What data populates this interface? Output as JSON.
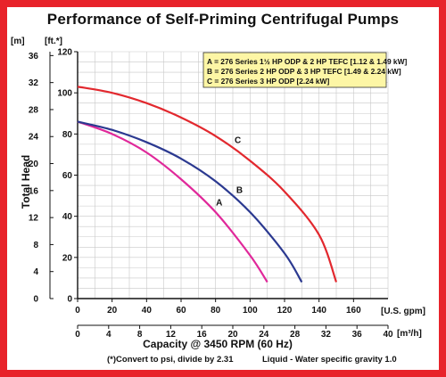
{
  "chart_data": {
    "type": "line",
    "title": "Performance of Self-Priming Centrifugal Pumps",
    "ylabel": "Total Head",
    "xlabel": "Capacity @ 3450 RPM (60 Hz)",
    "y_unit_left": "[m]",
    "y_unit_right": "[ft.*]",
    "x_unit_top": "[U.S. gpm]",
    "x_unit_bottom": "[m³/h]",
    "ylim_ft": [
      0,
      120
    ],
    "xlim_gpm": [
      0,
      180
    ],
    "y_ticks_ft": [
      0,
      20,
      40,
      60,
      80,
      100,
      120
    ],
    "y_ticks_m": [
      0,
      4,
      8,
      12,
      16,
      20,
      24,
      28,
      32,
      36
    ],
    "x_ticks_gpm": [
      0,
      20,
      40,
      60,
      80,
      100,
      120,
      140,
      160
    ],
    "x_ticks_m3h": [
      0,
      4,
      8,
      12,
      16,
      20,
      24,
      28,
      32,
      36,
      40
    ],
    "grid": true,
    "legend_placement": "top-right",
    "legend": [
      "A = 276 Series 1½ HP ODP & 2 HP TEFC [1.12 & 1.49 kW]",
      "B = 276 Series 2 HP ODP & 3 HP TEFC [1.49 & 2.24 kW]",
      "C = 276 Series 3 HP ODP [2.24 kW]"
    ],
    "series": [
      {
        "name": "A",
        "color": "#e0289a",
        "x": [
          0,
          20,
          40,
          60,
          80,
          100,
          110
        ],
        "y": [
          86,
          80,
          71,
          58,
          42,
          21,
          8
        ]
      },
      {
        "name": "B",
        "color": "#2b3990",
        "x": [
          0,
          20,
          40,
          60,
          80,
          100,
          120,
          130
        ],
        "y": [
          86,
          82,
          76,
          68,
          57,
          42,
          22,
          8
        ]
      },
      {
        "name": "C",
        "color": "#e2282e",
        "x": [
          0,
          20,
          40,
          60,
          80,
          100,
          120,
          140,
          150
        ],
        "y": [
          103,
          100,
          95,
          88,
          79,
          67,
          52,
          31,
          8
        ]
      }
    ],
    "footnote_left": "(*)Convert to psi, divide by 2.31",
    "footnote_right": "Liquid - Water specific gravity 1.0"
  }
}
